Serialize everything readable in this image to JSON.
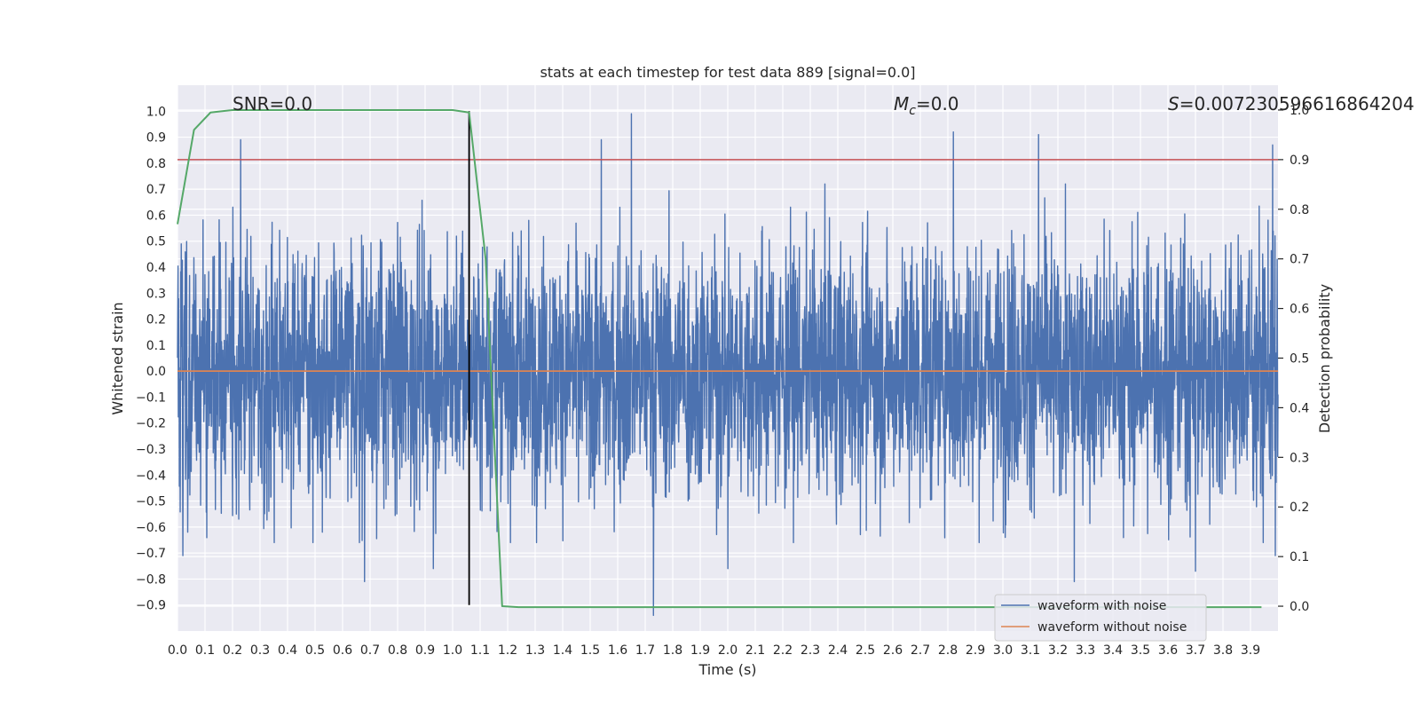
{
  "chart_data": {
    "type": "line",
    "title": "stats at each timestep for test data 889 [signal=0.0]",
    "xlabel": "Time (s)",
    "ylabel": "Whitened strain",
    "y2label": "Detection probability",
    "xlim": [
      0.0,
      4.0
    ],
    "ylim": [
      -1.0,
      1.1
    ],
    "y2lim": [
      -0.05,
      1.05
    ],
    "x_ticks": [
      "0.0",
      "0.1",
      "0.2",
      "0.3",
      "0.4",
      "0.5",
      "0.6",
      "0.7",
      "0.8",
      "0.9",
      "1.0",
      "1.1",
      "1.2",
      "1.3",
      "1.4",
      "1.5",
      "1.6",
      "1.7",
      "1.8",
      "1.9",
      "2.0",
      "2.1",
      "2.2",
      "2.3",
      "2.4",
      "2.5",
      "2.6",
      "2.7",
      "2.8",
      "2.9",
      "3.0",
      "3.1",
      "3.2",
      "3.3",
      "3.4",
      "3.5",
      "3.6",
      "3.7",
      "3.8",
      "3.9"
    ],
    "y_ticks": [
      "−0.9",
      "−0.8",
      "−0.7",
      "−0.6",
      "−0.5",
      "−0.4",
      "−0.3",
      "−0.2",
      "−0.1",
      "0.0",
      "0.1",
      "0.2",
      "0.3",
      "0.4",
      "0.5",
      "0.6",
      "0.7",
      "0.8",
      "0.9",
      "1.0"
    ],
    "y2_ticks": [
      "0.0",
      "0.1",
      "0.2",
      "0.3",
      "0.4",
      "0.5",
      "0.6",
      "0.7",
      "0.8",
      "0.9",
      "1.0"
    ],
    "grid": true,
    "legend_position": "lower-right",
    "annotations": {
      "snr": "SNR=0.0",
      "mc_symbol": "M",
      "mc_sub": "c",
      "mc_value": "=0.0",
      "s_symbol": "S",
      "s_value": "=0.007230596616864204"
    },
    "series": [
      {
        "name": "waveform with noise",
        "color": "#4c72b0",
        "axis": "left",
        "kind": "noise"
      },
      {
        "name": "waveform without noise",
        "color": "#dd8452",
        "axis": "left",
        "x": [
          0.0,
          4.0
        ],
        "y": [
          0.0,
          0.0
        ]
      }
    ],
    "noise_peaks": [
      {
        "x": 0.23,
        "y": 0.89
      },
      {
        "x": 1.06,
        "y": 0.99
      },
      {
        "x": 1.65,
        "y": 0.99
      },
      {
        "x": 1.54,
        "y": 0.89
      },
      {
        "x": 2.82,
        "y": 0.92
      },
      {
        "x": 3.13,
        "y": 0.91
      },
      {
        "x": 3.98,
        "y": 0.87
      },
      {
        "x": 1.73,
        "y": -0.94
      },
      {
        "x": 0.68,
        "y": -0.81
      },
      {
        "x": 3.26,
        "y": -0.81
      },
      {
        "x": 3.7,
        "y": -0.77
      },
      {
        "x": 0.93,
        "y": -0.76
      },
      {
        "x": 2.0,
        "y": -0.76
      },
      {
        "x": 0.02,
        "y": -0.71
      },
      {
        "x": 3.99,
        "y": -0.71
      }
    ],
    "detection_probability": {
      "name": "detection probability",
      "color": "#55a868",
      "axis": "right",
      "x": [
        0.0,
        0.06,
        0.12,
        0.2,
        0.4,
        0.6,
        0.8,
        1.0,
        1.06,
        1.12,
        1.18,
        1.24,
        1.3,
        1.6,
        2.0,
        2.5,
        3.0,
        3.5,
        3.94
      ],
      "y": [
        0.77,
        0.96,
        0.995,
        1.0,
        1.0,
        1.0,
        1.0,
        1.0,
        0.995,
        0.7,
        0.0,
        -0.002,
        -0.002,
        -0.002,
        -0.002,
        -0.002,
        -0.002,
        -0.002,
        -0.002
      ]
    },
    "threshold": {
      "axis": "right",
      "y": 0.9,
      "color": "#c44e52"
    },
    "vline": {
      "x": 1.06,
      "y_from": -0.9,
      "y_to": 1.0,
      "color": "#000000"
    },
    "colors": {
      "plot_bg": "#eaeaf2",
      "grid": "#ffffff"
    }
  }
}
